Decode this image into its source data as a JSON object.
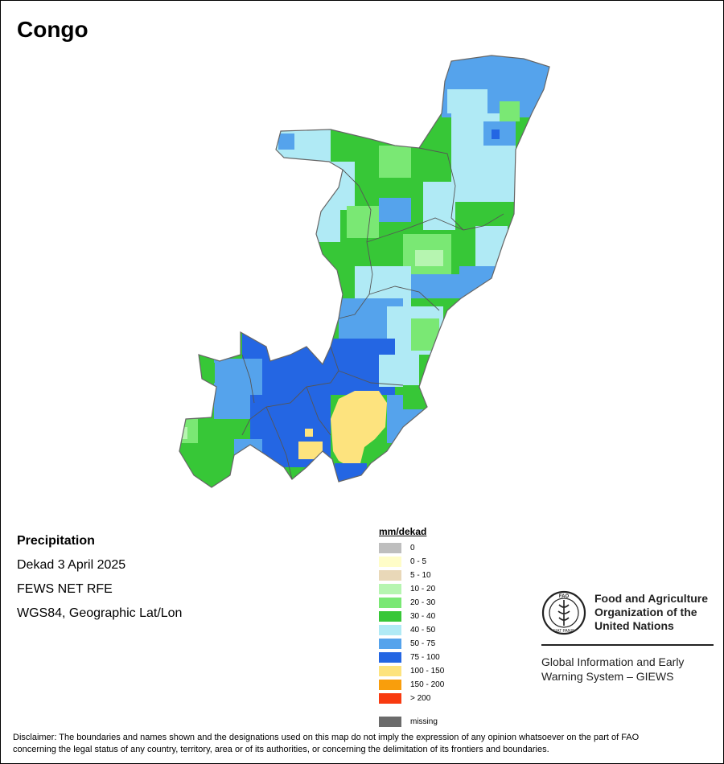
{
  "title": "Congo",
  "info": {
    "heading": "Precipitation",
    "period": "Dekad 3 April 2025",
    "source": "FEWS NET RFE",
    "projection": "WGS84, Geographic Lat/Lon"
  },
  "legend": {
    "title": "mm/dekad",
    "items": [
      {
        "label": "0",
        "color": "#bebebe"
      },
      {
        "label": "0 - 5",
        "color": "#fffdc8"
      },
      {
        "label": "5 - 10",
        "color": "#e9d8b8"
      },
      {
        "label": "10 - 20",
        "color": "#b6f5b0"
      },
      {
        "label": "20 - 30",
        "color": "#7ae874"
      },
      {
        "label": "30 - 40",
        "color": "#37c737"
      },
      {
        "label": "40 - 50",
        "color": "#b0eaf5"
      },
      {
        "label": "50 - 75",
        "color": "#55a3ec"
      },
      {
        "label": "75 - 100",
        "color": "#2466e3"
      },
      {
        "label": "100 - 150",
        "color": "#fde37e"
      },
      {
        "label": "150 - 200",
        "color": "#f99e0c"
      },
      {
        "label": "> 200",
        "color": "#f83a10"
      }
    ],
    "missing": {
      "label": "missing",
      "color": "#6b6b6b"
    }
  },
  "fao": {
    "logo_text": "FAO",
    "logo_motto": "FIAT PANIS",
    "name_line1": "Food and Agriculture",
    "name_line2": "Organization of the",
    "name_line3": "United Nations",
    "giews_line1": "Global Information and Early",
    "giews_line2": "Warning System – GIEWS"
  },
  "disclaimer_line1": "Disclaimer: The boundaries and names shown and the designations used on this map do not imply the expression of any opinion whatsoever on the part of FAO",
  "disclaimer_line2": "concerning the legal status of any country, territory, area or of its authorities, or concerning the delimitation of its frontiers and boundaries."
}
